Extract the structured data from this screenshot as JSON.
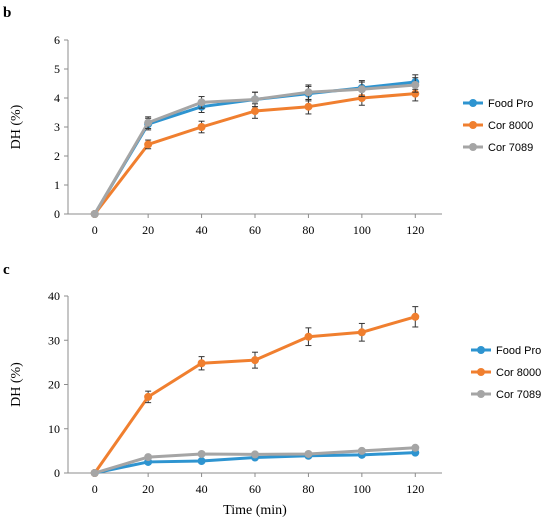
{
  "chart_data": [
    {
      "panel": "b",
      "type": "line",
      "xlabel": "",
      "ylabel": "DH (%)",
      "x": [
        0,
        20,
        40,
        60,
        80,
        100,
        120
      ],
      "xlim": [
        -10,
        130
      ],
      "ylim": [
        0,
        6
      ],
      "yticks": [
        0,
        1,
        2,
        3,
        4,
        5,
        6
      ],
      "grid": false,
      "legend_position": "right",
      "series": [
        {
          "name": "Food Pro",
          "color": "#2e94d0",
          "values": [
            0,
            3.1,
            3.7,
            3.95,
            4.15,
            4.35,
            4.55
          ],
          "errors": [
            0,
            0.2,
            0.2,
            0.25,
            0.25,
            0.25,
            0.25
          ]
        },
        {
          "name": "Cor 8000",
          "color": "#f07f2f",
          "values": [
            0,
            2.4,
            3.0,
            3.55,
            3.7,
            4.0,
            4.15
          ],
          "errors": [
            0,
            0.15,
            0.2,
            0.25,
            0.25,
            0.25,
            0.25
          ]
        },
        {
          "name": "Cor 7089",
          "color": "#a5a5a5",
          "values": [
            0,
            3.15,
            3.85,
            3.95,
            4.2,
            4.3,
            4.45
          ],
          "errors": [
            0,
            0.2,
            0.2,
            0.25,
            0.25,
            0.25,
            0.25
          ]
        }
      ]
    },
    {
      "panel": "c",
      "type": "line",
      "xlabel": "Time (min)",
      "ylabel": "DH (%)",
      "x": [
        0,
        20,
        40,
        60,
        80,
        100,
        120
      ],
      "xlim": [
        -10,
        130
      ],
      "ylim": [
        0,
        40
      ],
      "yticks": [
        0,
        10,
        20,
        30,
        40
      ],
      "grid": false,
      "legend_position": "right",
      "series": [
        {
          "name": "Food Pro",
          "color": "#2e94d0",
          "values": [
            0,
            2.5,
            2.7,
            3.5,
            3.9,
            4.1,
            4.6
          ],
          "errors": [
            0,
            0,
            0,
            0,
            0,
            0,
            0
          ]
        },
        {
          "name": "Cor 8000",
          "color": "#f07f2f",
          "values": [
            0,
            17.2,
            24.8,
            25.5,
            30.8,
            31.8,
            35.3
          ],
          "errors": [
            0,
            1.3,
            1.5,
            1.8,
            2.0,
            2.0,
            2.3
          ]
        },
        {
          "name": "Cor 7089",
          "color": "#a5a5a5",
          "values": [
            0,
            3.6,
            4.3,
            4.2,
            4.3,
            5.0,
            5.7
          ],
          "errors": [
            0,
            0,
            0,
            0,
            0,
            0,
            0
          ]
        }
      ]
    }
  ]
}
